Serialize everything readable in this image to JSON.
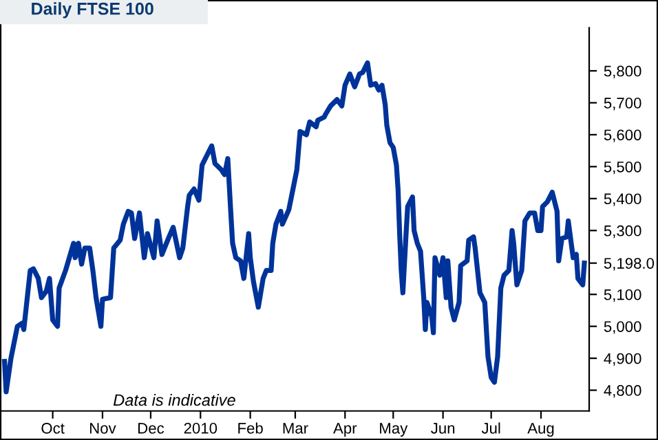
{
  "chart_data": {
    "type": "line",
    "title": "Daily FTSE 100",
    "annotations": [
      "Data is indicative"
    ],
    "x": [
      "2009-09-01",
      "2009-09-02",
      "2009-09-05",
      "2009-09-09",
      "2009-09-12",
      "2009-09-13",
      "2009-09-17",
      "2009-09-19",
      "2009-09-22",
      "2009-09-24",
      "2009-09-27",
      "2009-09-29",
      "2009-10-01",
      "2009-10-04",
      "2009-10-05",
      "2009-10-09",
      "2009-10-14",
      "2009-10-15",
      "2009-10-17",
      "2009-10-19",
      "2009-10-21",
      "2009-10-24",
      "2009-10-26",
      "2009-10-28",
      "2009-10-31",
      "2009-11-01",
      "2009-11-06",
      "2009-11-08",
      "2009-11-12",
      "2009-11-14",
      "2009-11-17",
      "2009-11-19",
      "2009-11-21",
      "2009-11-24",
      "2009-11-27",
      "2009-11-29",
      "2009-12-03",
      "2009-12-05",
      "2009-12-08",
      "2009-12-12",
      "2009-12-15",
      "2009-12-19",
      "2009-12-21",
      "2009-12-24",
      "2009-12-25",
      "2009-12-28",
      "2009-12-31",
      "2010-01-02",
      "2010-01-06",
      "2010-01-08",
      "2010-01-10",
      "2010-01-14",
      "2010-01-16",
      "2010-01-18",
      "2010-01-20",
      "2010-01-21",
      "2010-01-23",
      "2010-01-26",
      "2010-01-28",
      "2010-01-31",
      "2010-02-01",
      "2010-02-03",
      "2010-02-06",
      "2010-02-09",
      "2010-02-11",
      "2010-02-14",
      "2010-02-15",
      "2010-02-17",
      "2010-02-20",
      "2010-02-21",
      "2010-02-25",
      "2010-02-26",
      "2010-03-02",
      "2010-03-04",
      "2010-03-08",
      "2010-03-10",
      "2010-03-14",
      "2010-03-15",
      "2010-03-19",
      "2010-03-20",
      "2010-03-23",
      "2010-03-27",
      "2010-03-30",
      "2010-04-01",
      "2010-04-04",
      "2010-04-07",
      "2010-04-10",
      "2010-04-12",
      "2010-04-15",
      "2010-04-17",
      "2010-04-20",
      "2010-04-22",
      "2010-04-24",
      "2010-04-26",
      "2010-04-27",
      "2010-04-29",
      "2010-05-01",
      "2010-05-03",
      "2010-05-04",
      "2010-05-05",
      "2010-05-06",
      "2010-05-07",
      "2010-05-09",
      "2010-05-10",
      "2010-05-13",
      "2010-05-14",
      "2010-05-16",
      "2010-05-18",
      "2010-05-20",
      "2010-05-21",
      "2010-05-22",
      "2010-05-25",
      "2010-05-26",
      "2010-05-27",
      "2010-05-30",
      "2010-06-01",
      "2010-06-03",
      "2010-06-04",
      "2010-06-06",
      "2010-06-08",
      "2010-06-11",
      "2010-06-12",
      "2010-06-16",
      "2010-06-17",
      "2010-06-20",
      "2010-06-21",
      "2010-06-24",
      "2010-06-27",
      "2010-06-29",
      "2010-07-01",
      "2010-07-03",
      "2010-07-05",
      "2010-07-07",
      "2010-07-09",
      "2010-07-12",
      "2010-07-14",
      "2010-07-15",
      "2010-07-17",
      "2010-07-20",
      "2010-07-22",
      "2010-07-25",
      "2010-07-28",
      "2010-07-30",
      "2010-08-01",
      "2010-08-02",
      "2010-08-05",
      "2010-08-08",
      "2010-08-11",
      "2010-08-12",
      "2010-08-14",
      "2010-08-17",
      "2010-08-18",
      "2010-08-21",
      "2010-08-23",
      "2010-08-24",
      "2010-08-27",
      "2010-08-28"
    ],
    "series": [
      {
        "color": "#003399",
        "values": [
          4890,
          4795,
          4900,
          5000,
          5010,
          4990,
          5175,
          5180,
          5150,
          5090,
          5110,
          5150,
          5020,
          5000,
          5120,
          5175,
          5260,
          5215,
          5260,
          5195,
          5245,
          5245,
          5175,
          5090,
          5000,
          5085,
          5090,
          5245,
          5270,
          5320,
          5360,
          5355,
          5275,
          5355,
          5215,
          5290,
          5215,
          5330,
          5225,
          5275,
          5310,
          5215,
          5245,
          5375,
          5410,
          5430,
          5395,
          5505,
          5545,
          5565,
          5510,
          5490,
          5475,
          5525,
          5345,
          5260,
          5215,
          5205,
          5150,
          5290,
          5215,
          5140,
          5060,
          5150,
          5175,
          5175,
          5260,
          5320,
          5360,
          5320,
          5365,
          5390,
          5490,
          5610,
          5600,
          5640,
          5625,
          5645,
          5655,
          5665,
          5690,
          5710,
          5690,
          5755,
          5790,
          5750,
          5790,
          5795,
          5825,
          5755,
          5760,
          5740,
          5755,
          5695,
          5630,
          5575,
          5560,
          5505,
          5430,
          5290,
          5175,
          5105,
          5290,
          5375,
          5405,
          5300,
          5260,
          5235,
          5090,
          4990,
          5075,
          5030,
          4980,
          5215,
          5160,
          5215,
          5090,
          5205,
          5060,
          5020,
          5075,
          5190,
          5205,
          5270,
          5280,
          5245,
          5105,
          5075,
          4905,
          4840,
          4825,
          4905,
          5120,
          5160,
          5175,
          5300,
          5260,
          5130,
          5175,
          5330,
          5355,
          5355,
          5300,
          5300,
          5375,
          5390,
          5420,
          5360,
          5205,
          5275,
          5280,
          5330,
          5215,
          5225,
          5150,
          5130,
          5198
        ]
      }
    ],
    "xlim": [
      "2009-08-30",
      "2010-08-31"
    ],
    "xticks": [
      {
        "value": "2009-10-01",
        "label": "Oct"
      },
      {
        "value": "2009-11-01",
        "label": "Nov"
      },
      {
        "value": "2009-12-01",
        "label": "Dec"
      },
      {
        "value": "2010-01-01",
        "label": "2010"
      },
      {
        "value": "2010-02-01",
        "label": "Feb"
      },
      {
        "value": "2010-03-01",
        "label": "Mar"
      },
      {
        "value": "2010-04-01",
        "label": "Apr"
      },
      {
        "value": "2010-05-01",
        "label": "May"
      },
      {
        "value": "2010-06-01",
        "label": "Jun"
      },
      {
        "value": "2010-07-01",
        "label": "Jul"
      },
      {
        "value": "2010-08-01",
        "label": "Aug"
      }
    ],
    "ylim": [
      4735,
      5935
    ],
    "yticks": [
      {
        "value": 4800,
        "label": "4,800"
      },
      {
        "value": 4900,
        "label": "4,900"
      },
      {
        "value": 5000,
        "label": "5,000"
      },
      {
        "value": 5100,
        "label": "5,100"
      },
      {
        "value": 5198,
        "label": "5,198.0"
      },
      {
        "value": 5300,
        "label": "5,300"
      },
      {
        "value": 5400,
        "label": "5,400"
      },
      {
        "value": 5500,
        "label": "5,500"
      },
      {
        "value": 5600,
        "label": "5,600"
      },
      {
        "value": 5700,
        "label": "5,700"
      },
      {
        "value": 5800,
        "label": "5,800"
      }
    ],
    "marker": "none",
    "line_style": "solid",
    "grid": false,
    "legend": false
  }
}
